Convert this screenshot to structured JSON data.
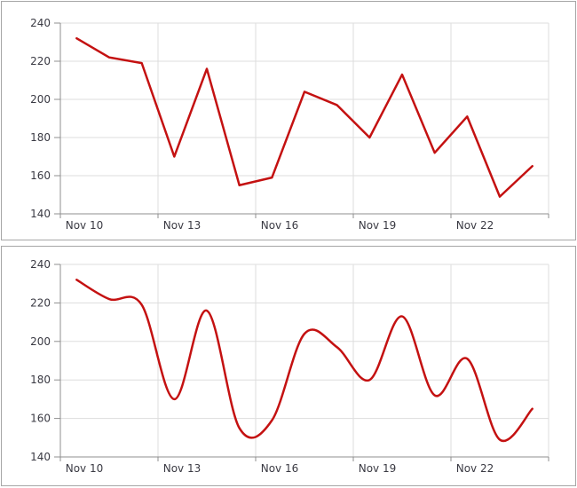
{
  "colors": {
    "series_red": "#c41111",
    "axis_line": "#8f8f8f",
    "gridline": "#dddddd",
    "tick_label": "#3a3a43",
    "panel_border": "#a6a6a6",
    "panel_background": "#ffffff"
  },
  "chart_data": [
    {
      "type": "line",
      "smooth": false,
      "x": [
        "Nov 10",
        "Nov 11",
        "Nov 12",
        "Nov 13",
        "Nov 14",
        "Nov 15",
        "Nov 16",
        "Nov 17",
        "Nov 18",
        "Nov 19",
        "Nov 20",
        "Nov 21",
        "Nov 22",
        "Nov 23",
        "Nov 24"
      ],
      "values": [
        232,
        222,
        219,
        170,
        216,
        155,
        159,
        204,
        197,
        180,
        213,
        172,
        191,
        149,
        165
      ],
      "ylim": [
        140,
        240
      ],
      "yticks": [
        140,
        160,
        180,
        200,
        220,
        240
      ],
      "ytick_labels": [
        "140",
        "160",
        "180",
        "200",
        "220",
        "240"
      ],
      "xtick_labels": [
        "Nov 10",
        "Nov 13",
        "Nov 16",
        "Nov 19",
        "Nov 22"
      ],
      "grid": true,
      "legend": "none",
      "line_color": "#c41111"
    },
    {
      "type": "line",
      "smooth": true,
      "x": [
        "Nov 10",
        "Nov 11",
        "Nov 12",
        "Nov 13",
        "Nov 14",
        "Nov 15",
        "Nov 16",
        "Nov 17",
        "Nov 18",
        "Nov 19",
        "Nov 20",
        "Nov 21",
        "Nov 22",
        "Nov 23",
        "Nov 24"
      ],
      "values": [
        232,
        222,
        219,
        170,
        216,
        155,
        159,
        204,
        197,
        180,
        213,
        172,
        191,
        149,
        165
      ],
      "ylim": [
        140,
        240
      ],
      "yticks": [
        140,
        160,
        180,
        200,
        220,
        240
      ],
      "ytick_labels": [
        "140",
        "160",
        "180",
        "200",
        "220",
        "240"
      ],
      "xtick_labels": [
        "Nov 10",
        "Nov 13",
        "Nov 16",
        "Nov 19",
        "Nov 22"
      ],
      "grid": true,
      "legend": "none",
      "line_color": "#c41111"
    }
  ]
}
